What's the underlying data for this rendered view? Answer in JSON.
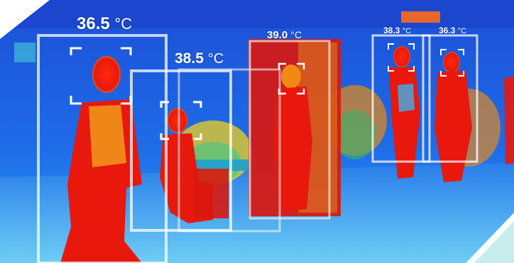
{
  "detections": [
    {
      "reading": "36.5",
      "unit": "°C"
    },
    {
      "reading": "38.5",
      "unit": "°C"
    },
    {
      "reading": "39.0",
      "unit": "°C"
    },
    {
      "reading": "38.3",
      "unit": "°C"
    },
    {
      "reading": "36.3",
      "unit": "°C"
    }
  ],
  "colors": {
    "thermal_cold": "#1a5fe0",
    "thermal_cool": "#2f9cf0",
    "thermal_warm": "#f2d21a",
    "thermal_hot": "#e8180c",
    "box_white": "#ffffff",
    "corner_accent": "#c9ecee"
  }
}
